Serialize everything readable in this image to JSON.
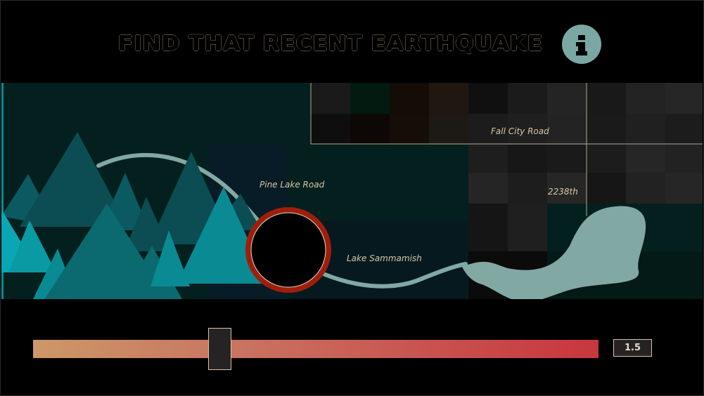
{
  "header": {
    "title": "FIND THAT RECENT EARTHQUAKE",
    "info_icon_glyph": "i"
  },
  "map": {
    "labels": {
      "pine_lake_road": "Pine Lake Road",
      "fall_city_road": "Fall City Road",
      "lake_sammamish": "Lake Sammamish",
      "street_2238th": "2238th"
    },
    "colors": {
      "background": "#03201e",
      "road": "#82a8a4",
      "target_ring": "#9f1e0b",
      "mountain_dark": "#0b4d52",
      "mountain_light": "#0a8a93"
    }
  },
  "slider": {
    "value": "1.5",
    "level_fraction": 0.33,
    "gradient_start": "#cc9868",
    "gradient_end": "#c8363e"
  }
}
